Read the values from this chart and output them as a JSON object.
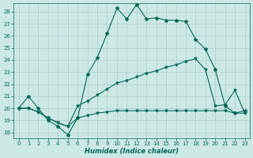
{
  "xlabel": "Humidex (Indice chaleur)",
  "xlim": [
    -0.5,
    23.5
  ],
  "ylim": [
    17.5,
    28.7
  ],
  "yticks": [
    18,
    19,
    20,
    21,
    22,
    23,
    24,
    25,
    26,
    27,
    28
  ],
  "xticks": [
    0,
    1,
    2,
    3,
    4,
    5,
    6,
    7,
    8,
    9,
    10,
    11,
    12,
    13,
    14,
    15,
    16,
    17,
    18,
    19,
    20,
    21,
    22,
    23
  ],
  "bg_color": "#cce8e5",
  "grid_color": "#aaccca",
  "line_color": "#006655",
  "line1_y": [
    20.0,
    21.0,
    20.0,
    19.0,
    18.5,
    17.8,
    19.2,
    22.8,
    24.2,
    26.2,
    28.3,
    27.4,
    28.6,
    27.4,
    27.5,
    27.3,
    27.3,
    27.2,
    25.7,
    24.9,
    23.2,
    20.2,
    19.6,
    19.8
  ],
  "line2_y": [
    20.0,
    20.0,
    19.7,
    19.2,
    18.8,
    18.5,
    20.2,
    20.6,
    21.1,
    21.6,
    22.1,
    22.3,
    22.6,
    22.9,
    23.1,
    23.4,
    23.6,
    23.9,
    24.1,
    23.2,
    20.2,
    20.3,
    21.5,
    19.6
  ],
  "line3_y": [
    20.0,
    20.0,
    19.7,
    19.2,
    18.8,
    18.5,
    19.2,
    19.4,
    19.6,
    19.7,
    19.8,
    19.8,
    19.8,
    19.8,
    19.8,
    19.8,
    19.8,
    19.8,
    19.8,
    19.8,
    19.8,
    19.8,
    19.6,
    19.6
  ]
}
